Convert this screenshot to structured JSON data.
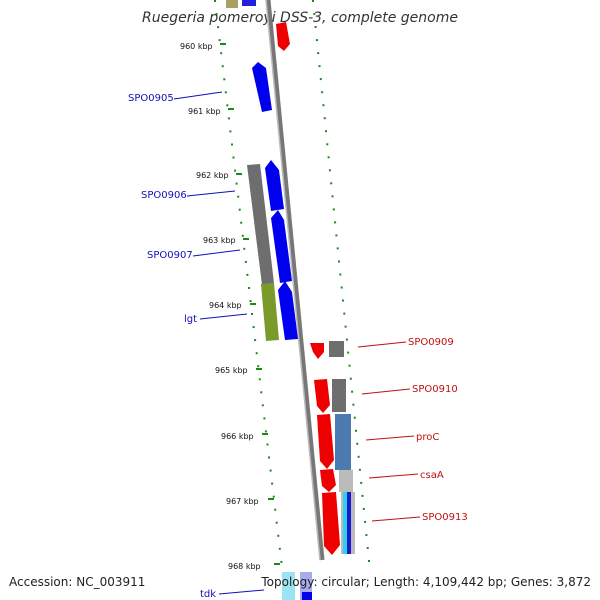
{
  "title": "Ruegeria pomeroyi DSS-3, complete genome",
  "accession_text": "Accession: NC_003911",
  "info_text": "Topology: circular; Length: 4,109,442 bp; Genes: 3,872",
  "colors": {
    "forward_gene": "#0000ee",
    "reverse_gene": "#ee0000",
    "cds": "#6e6e6e",
    "lgt_cds": "#7a9a2a",
    "tick": "#1a8a1a",
    "backbone": "#8a8a8a"
  },
  "kbp_ticks": [
    "960 kbp",
    "961 kbp",
    "962 kbp",
    "963 kbp",
    "964 kbp",
    "965 kbp",
    "966 kbp",
    "967 kbp",
    "968 kbp"
  ],
  "forward_labels": [
    "SPO0905",
    "SPO0906",
    "SPO0907",
    "lgt",
    "tdk"
  ],
  "reverse_labels": [
    "SPO0909",
    "SPO0910",
    "proC",
    "csaA",
    "SPO0913"
  ]
}
